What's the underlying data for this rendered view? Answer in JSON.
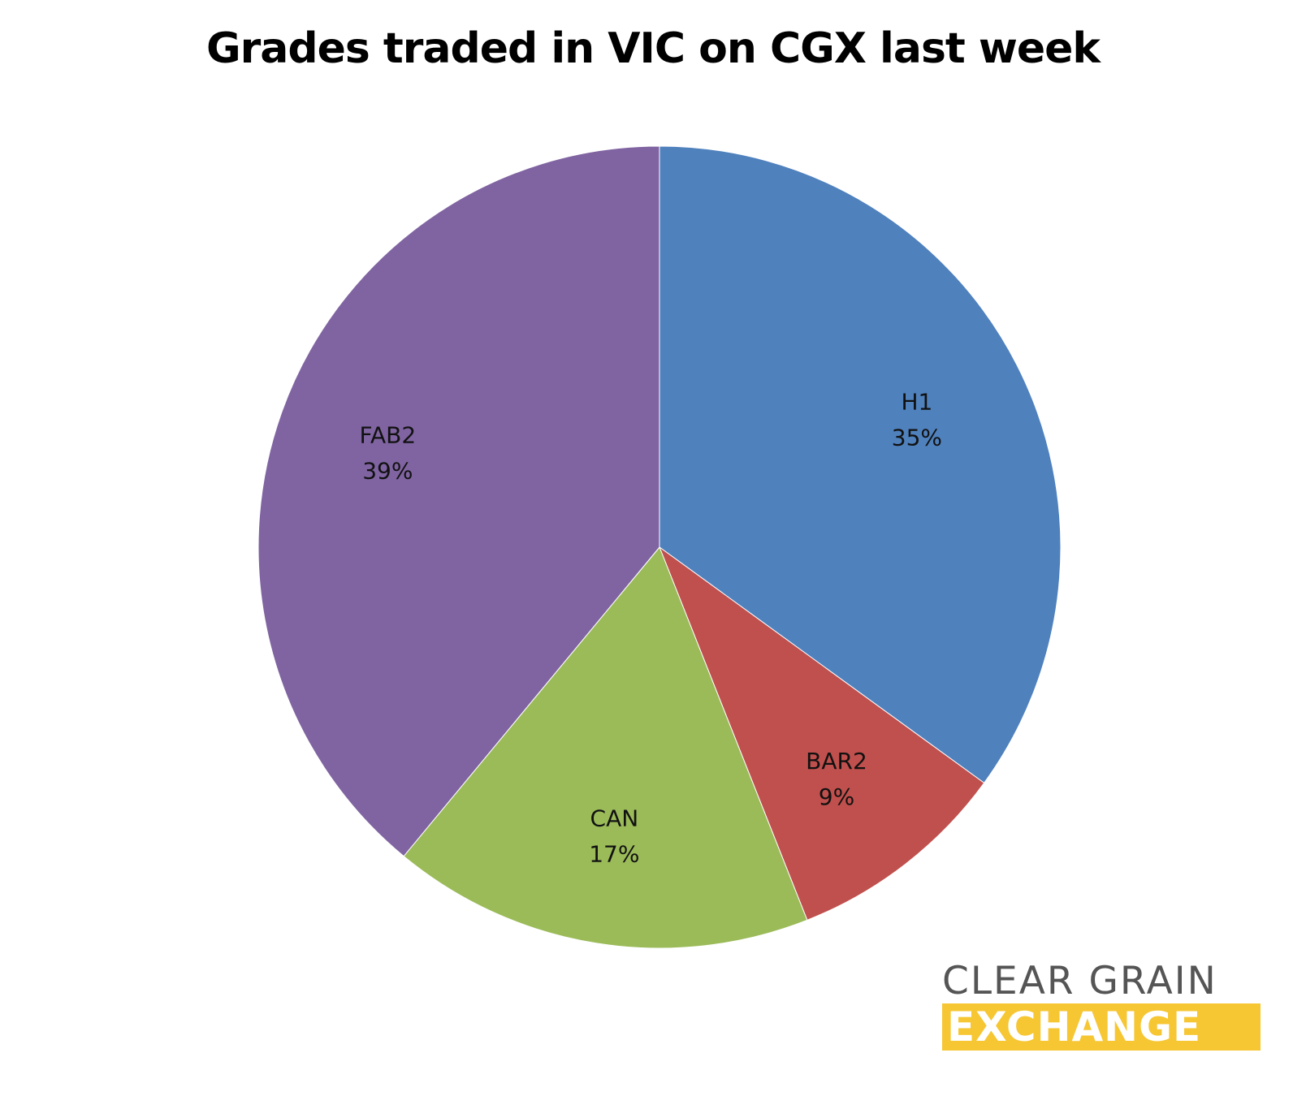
{
  "chart_data": {
    "type": "pie",
    "title": "Grades traded in VIC on CGX last week",
    "slices": [
      {
        "label": "H1",
        "percent_label": "35%",
        "value": 35,
        "color": "#4f81bd"
      },
      {
        "label": "BAR2",
        "percent_label": "9%",
        "value": 9,
        "color": "#c0504d"
      },
      {
        "label": "CAN",
        "percent_label": "17%",
        "value": 17,
        "color": "#9bbb59"
      },
      {
        "label": "FAB2",
        "percent_label": "39%",
        "value": 39,
        "color": "#8064a2"
      }
    ]
  },
  "logo": {
    "line1": "CLEAR GRAIN",
    "line2": "EXCHANGE"
  }
}
